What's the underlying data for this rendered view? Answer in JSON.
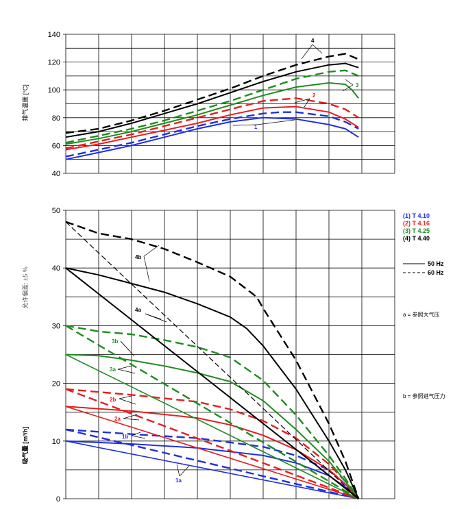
{
  "colors": {
    "t410": "#1f2fe0",
    "t416": "#e61e1e",
    "t425": "#1e8c1e",
    "t440": "#000000",
    "grid": "#000000"
  },
  "chart_data": [
    {
      "id": "top",
      "type": "line",
      "ylabel": "排气温度 [°C]",
      "xlabel": "",
      "ylim": [
        40,
        140
      ],
      "yticks": [
        40,
        60,
        80,
        100,
        120,
        140
      ],
      "xlim": [
        0,
        10
      ],
      "x_gridlines": 10,
      "series": [
        {
          "key": "t410",
          "dash": false,
          "points": [
            [
              0,
              50
            ],
            [
              1,
              55
            ],
            [
              2,
              60
            ],
            [
              3,
              66
            ],
            [
              4,
              72
            ],
            [
              5,
              77
            ],
            [
              6,
              80
            ],
            [
              7,
              79
            ],
            [
              8,
              75
            ],
            [
              8.5,
              72
            ],
            [
              8.9,
              66
            ]
          ]
        },
        {
          "key": "t410",
          "dash": true,
          "points": [
            [
              0,
              52
            ],
            [
              1,
              57
            ],
            [
              2,
              62
            ],
            [
              3,
              68
            ],
            [
              4,
              74
            ],
            [
              5,
              79
            ],
            [
              6,
              83
            ],
            [
              6.5,
              84
            ],
            [
              7,
              84
            ],
            [
              8,
              81
            ],
            [
              8.5,
              77
            ],
            [
              8.9,
              72
            ]
          ]
        },
        {
          "key": "t416",
          "dash": false,
          "points": [
            [
              0,
              57
            ],
            [
              1,
              61
            ],
            [
              2,
              66
            ],
            [
              3,
              71
            ],
            [
              4,
              76
            ],
            [
              5,
              82
            ],
            [
              6,
              87
            ],
            [
              7,
              88
            ],
            [
              8,
              84
            ],
            [
              8.5,
              79
            ],
            [
              8.9,
              73
            ]
          ]
        },
        {
          "key": "t416",
          "dash": true,
          "points": [
            [
              0,
              58
            ],
            [
              1,
              63
            ],
            [
              2,
              68
            ],
            [
              3,
              74
            ],
            [
              4,
              80
            ],
            [
              5,
              86
            ],
            [
              6,
              92
            ],
            [
              7,
              94
            ],
            [
              8,
              90
            ],
            [
              8.5,
              86
            ],
            [
              8.9,
              80
            ]
          ]
        },
        {
          "key": "t425",
          "dash": false,
          "points": [
            [
              0,
              61
            ],
            [
              1,
              65
            ],
            [
              2,
              70
            ],
            [
              3,
              76
            ],
            [
              4,
              82
            ],
            [
              5,
              89
            ],
            [
              6,
              96
            ],
            [
              7,
              102
            ],
            [
              8,
              105
            ],
            [
              8.5,
              104
            ],
            [
              8.7,
              100
            ],
            [
              8.9,
              94
            ]
          ]
        },
        {
          "key": "t425",
          "dash": true,
          "points": [
            [
              0,
              62
            ],
            [
              1,
              67
            ],
            [
              2,
              72
            ],
            [
              3,
              78
            ],
            [
              4,
              85
            ],
            [
              5,
              92
            ],
            [
              6,
              100
            ],
            [
              7,
              108
            ],
            [
              8,
              113
            ],
            [
              8.5,
              114
            ],
            [
              8.9,
              110
            ]
          ]
        },
        {
          "key": "t440",
          "dash": false,
          "points": [
            [
              0,
              66
            ],
            [
              1,
              70
            ],
            [
              2,
              76
            ],
            [
              3,
              83
            ],
            [
              4,
              90
            ],
            [
              5,
              98
            ],
            [
              6,
              106
            ],
            [
              7,
              113
            ],
            [
              8,
              118
            ],
            [
              8.5,
              119
            ],
            [
              8.9,
              116
            ]
          ]
        },
        {
          "key": "t440",
          "dash": true,
          "points": [
            [
              0,
              69
            ],
            [
              1,
              72
            ],
            [
              2,
              78
            ],
            [
              3,
              85
            ],
            [
              4,
              93
            ],
            [
              5,
              101
            ],
            [
              6,
              110
            ],
            [
              7,
              118
            ],
            [
              8,
              124
            ],
            [
              8.5,
              126
            ],
            [
              8.9,
              122
            ]
          ]
        }
      ],
      "annotations": [
        "1",
        "2",
        "3",
        "4"
      ]
    },
    {
      "id": "bottom",
      "type": "line",
      "ylabel": "吸气量 [m³/h]",
      "xlabel": "",
      "ylim": [
        0,
        50
      ],
      "yticks": [
        0,
        10,
        20,
        30,
        40,
        50
      ],
      "xlim": [
        0,
        10
      ],
      "x_gridlines": 10,
      "series": [
        {
          "key": "t410",
          "dash": false,
          "variant": "b",
          "points": [
            [
              0,
              10
            ],
            [
              2,
              9.5
            ],
            [
              4,
              8.8
            ],
            [
              6,
              7.5
            ],
            [
              7,
              6.2
            ],
            [
              8,
              4
            ],
            [
              8.5,
              2
            ],
            [
              8.9,
              0
            ]
          ]
        },
        {
          "key": "t410",
          "dash": false,
          "variant": "a",
          "points": [
            [
              0,
              10
            ],
            [
              8.9,
              0
            ]
          ]
        },
        {
          "key": "t410",
          "dash": true,
          "variant": "b",
          "points": [
            [
              0,
              12
            ],
            [
              2,
              11.2
            ],
            [
              4,
              10.5
            ],
            [
              6,
              9
            ],
            [
              7,
              7.5
            ],
            [
              8,
              5
            ],
            [
              8.5,
              2.5
            ],
            [
              8.9,
              0
            ]
          ]
        },
        {
          "key": "t410",
          "dash": true,
          "variant": "a",
          "points": [
            [
              0,
              12
            ],
            [
              8.9,
              0
            ]
          ]
        },
        {
          "key": "t416",
          "dash": false,
          "variant": "b",
          "points": [
            [
              0,
              16
            ],
            [
              2,
              15.2
            ],
            [
              4,
              14
            ],
            [
              5,
              12.8
            ],
            [
              6,
              11
            ],
            [
              7,
              8.5
            ],
            [
              8,
              5
            ],
            [
              8.5,
              2.5
            ],
            [
              8.9,
              0
            ]
          ]
        },
        {
          "key": "t416",
          "dash": false,
          "variant": "a",
          "points": [
            [
              0,
              16
            ],
            [
              8.9,
              0
            ]
          ]
        },
        {
          "key": "t416",
          "dash": true,
          "variant": "b",
          "points": [
            [
              0,
              19
            ],
            [
              2,
              18
            ],
            [
              4,
              16.8
            ],
            [
              5,
              15.5
            ],
            [
              6,
              13.5
            ],
            [
              7,
              10.5
            ],
            [
              8,
              6
            ],
            [
              8.5,
              3
            ],
            [
              8.9,
              0
            ]
          ]
        },
        {
          "key": "t416",
          "dash": true,
          "variant": "a",
          "points": [
            [
              0,
              19
            ],
            [
              8.9,
              0
            ]
          ]
        },
        {
          "key": "t425",
          "dash": false,
          "variant": "b",
          "points": [
            [
              0,
              25
            ],
            [
              1,
              24.8
            ],
            [
              2,
              24
            ],
            [
              3,
              23
            ],
            [
              4,
              21.8
            ],
            [
              5,
              20.3
            ],
            [
              6,
              17
            ],
            [
              7,
              12
            ],
            [
              8,
              6.5
            ],
            [
              8.5,
              3
            ],
            [
              8.9,
              0
            ]
          ]
        },
        {
          "key": "t425",
          "dash": false,
          "variant": "a",
          "points": [
            [
              0,
              25
            ],
            [
              8.9,
              0
            ]
          ]
        },
        {
          "key": "t425",
          "dash": true,
          "variant": "b",
          "points": [
            [
              0,
              30
            ],
            [
              1,
              29
            ],
            [
              2,
              28.5
            ],
            [
              3,
              27.5
            ],
            [
              4,
              26.3
            ],
            [
              5,
              24.5
            ],
            [
              6,
              20.5
            ],
            [
              7,
              14.5
            ],
            [
              8,
              7.5
            ],
            [
              8.5,
              3.5
            ],
            [
              8.9,
              0
            ]
          ]
        },
        {
          "key": "t425",
          "dash": true,
          "variant": "a",
          "points": [
            [
              0,
              30
            ],
            [
              8.9,
              0
            ]
          ]
        },
        {
          "key": "t440",
          "dash": false,
          "variant": "b",
          "points": [
            [
              0,
              40
            ],
            [
              1,
              38.8
            ],
            [
              2,
              37.3
            ],
            [
              3,
              35.8
            ],
            [
              4,
              33.8
            ],
            [
              5,
              31.5
            ],
            [
              5.5,
              29.5
            ],
            [
              6,
              26.5
            ],
            [
              7,
              19
            ],
            [
              8,
              10
            ],
            [
              8.5,
              5
            ],
            [
              8.9,
              0
            ]
          ]
        },
        {
          "key": "t440",
          "dash": false,
          "variant": "a",
          "points": [
            [
              0,
              40
            ],
            [
              8.9,
              0
            ]
          ]
        },
        {
          "key": "t440",
          "dash": true,
          "variant": "b",
          "points": [
            [
              0,
              48
            ],
            [
              1,
              46
            ],
            [
              2,
              45
            ],
            [
              3,
              43.3
            ],
            [
              4,
              41
            ],
            [
              5,
              38.5
            ],
            [
              5.8,
              35
            ],
            [
              6,
              33
            ],
            [
              7,
              24
            ],
            [
              8,
              13
            ],
            [
              8.5,
              6.5
            ],
            [
              8.9,
              0
            ]
          ]
        },
        {
          "key": "t440",
          "dash": true,
          "variant": "a",
          "points": [
            [
              0,
              48
            ],
            [
              8.9,
              0
            ]
          ]
        }
      ],
      "annotations": [
        "1a",
        "1b",
        "2a",
        "2b",
        "3a",
        "3b",
        "4a",
        "4b"
      ]
    }
  ],
  "top_chart_ylabel": "排气温度 [°C]",
  "bottom_chart_ylabel": "吸气量 [m³/h]",
  "tolerance_label": "允许偏差: ±5 %",
  "legend": {
    "series": [
      {
        "label": "(1)  T 4.10",
        "key": "t410"
      },
      {
        "label": "(2)  T 4.16",
        "key": "t416"
      },
      {
        "label": "(3)  T 4.25",
        "key": "t425"
      },
      {
        "label": "(4)  T 4.40",
        "key": "t440"
      }
    ],
    "freq_50": "50 Hz",
    "freq_60": "60 Hz",
    "note_a": "a =  参照大气压",
    "note_b": "b = 参照进气压力"
  }
}
